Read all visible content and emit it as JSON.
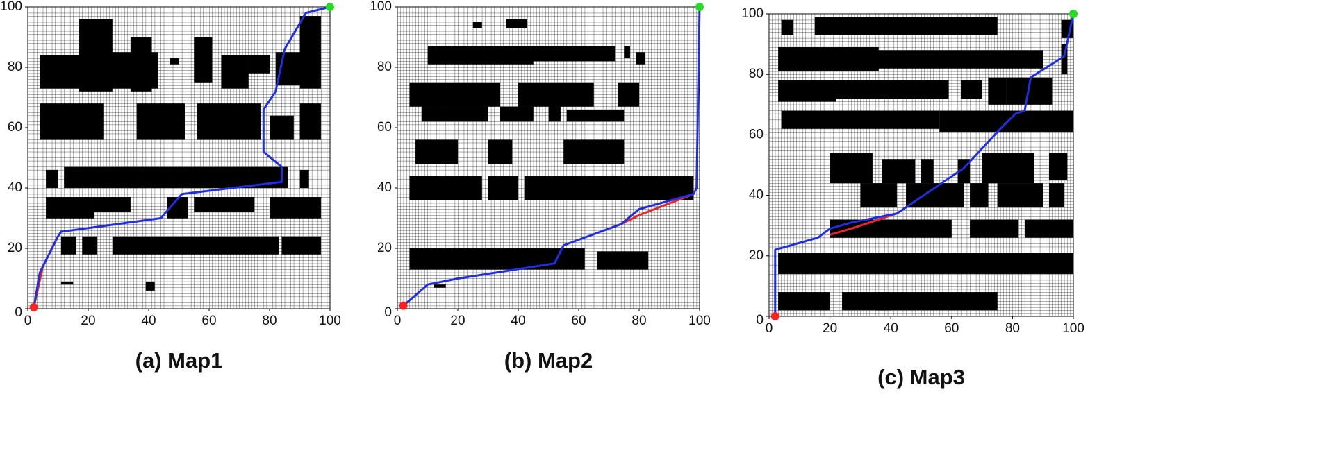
{
  "chart_data": [
    {
      "type": "line",
      "title": "(a) Map1",
      "xlim": [
        0,
        100
      ],
      "ylim": [
        0,
        100
      ],
      "xticks": [
        0,
        20,
        40,
        60,
        80,
        100
      ],
      "yticks": [
        0,
        20,
        40,
        60,
        80,
        100
      ],
      "grid": true,
      "obstacles": [
        [
          4,
          73,
          20,
          84
        ],
        [
          17,
          72,
          28,
          96
        ],
        [
          23,
          73,
          43,
          85
        ],
        [
          34,
          72,
          41,
          90
        ],
        [
          47,
          81,
          50,
          83
        ],
        [
          55,
          75,
          61,
          90
        ],
        [
          64,
          73,
          73,
          84
        ],
        [
          73,
          78,
          80,
          84
        ],
        [
          82,
          74,
          90,
          85
        ],
        [
          90,
          73,
          97,
          97
        ],
        [
          4,
          56,
          25,
          68
        ],
        [
          36,
          56,
          52,
          68
        ],
        [
          56,
          56,
          77,
          68
        ],
        [
          80,
          56,
          88,
          64
        ],
        [
          90,
          56,
          97,
          68
        ],
        [
          6,
          40,
          10,
          46
        ],
        [
          12,
          40,
          86,
          47
        ],
        [
          90,
          40,
          93,
          46
        ],
        [
          6,
          30,
          22,
          37
        ],
        [
          22,
          32,
          34,
          37
        ],
        [
          46,
          30,
          53,
          37
        ],
        [
          55,
          32,
          75,
          37
        ],
        [
          80,
          30,
          97,
          37
        ],
        [
          11,
          18,
          16,
          24
        ],
        [
          18,
          18,
          23,
          24
        ],
        [
          28,
          18,
          83,
          24
        ],
        [
          84,
          18,
          97,
          24
        ],
        [
          11,
          8,
          15,
          9
        ],
        [
          39,
          6,
          42,
          9
        ]
      ],
      "series": [
        {
          "color": "#e8262b",
          "x": [
            2,
            5,
            10
          ],
          "values": [
            0.5,
            14,
            24
          ]
        },
        {
          "color": "#1f2fe0",
          "x": [
            2,
            4,
            10,
            11,
            44,
            51,
            84,
            84,
            78,
            78,
            82,
            85,
            92,
            100
          ],
          "values": [
            0.5,
            12,
            24,
            25.5,
            30,
            38,
            42,
            47,
            52,
            66,
            72,
            86,
            98,
            100
          ]
        }
      ],
      "start": {
        "x": 2,
        "y": 0.5,
        "color": "#ff2020"
      },
      "goal": {
        "x": 100,
        "y": 100,
        "color": "#22dd22"
      }
    },
    {
      "type": "line",
      "title": "(b) Map2",
      "xlim": [
        0,
        100
      ],
      "ylim": [
        0,
        100
      ],
      "xticks": [
        0,
        20,
        40,
        60,
        80,
        100
      ],
      "yticks": [
        0,
        20,
        40,
        60,
        80,
        100
      ],
      "grid": true,
      "obstacles": [
        [
          25,
          93,
          28,
          95
        ],
        [
          36,
          93,
          43,
          96
        ],
        [
          10,
          81,
          45,
          87
        ],
        [
          44,
          82,
          72,
          87
        ],
        [
          75,
          83,
          77,
          87
        ],
        [
          79,
          81,
          82,
          85
        ],
        [
          4,
          67,
          34,
          75
        ],
        [
          40,
          67,
          65,
          75
        ],
        [
          73,
          67,
          80,
          75
        ],
        [
          8,
          62,
          30,
          67
        ],
        [
          34,
          62,
          45,
          67
        ],
        [
          50,
          62,
          54,
          67
        ],
        [
          56,
          62,
          75,
          66
        ],
        [
          6,
          48,
          20,
          56
        ],
        [
          30,
          48,
          38,
          56
        ],
        [
          55,
          48,
          75,
          56
        ],
        [
          4,
          36,
          28,
          44
        ],
        [
          30,
          36,
          40,
          44
        ],
        [
          42,
          36,
          98,
          44
        ],
        [
          4,
          13,
          20,
          20
        ],
        [
          18,
          13,
          50,
          20
        ],
        [
          48,
          13,
          62,
          20
        ],
        [
          66,
          13,
          83,
          19
        ],
        [
          12,
          7,
          16,
          8
        ]
      ],
      "series": [
        {
          "color": "#e8262b",
          "x": [
            74,
            80,
            98
          ],
          "values": [
            28,
            31,
            38
          ]
        },
        {
          "color": "#1f2fe0",
          "x": [
            2,
            10,
            20,
            52,
            55,
            74,
            80,
            98,
            99,
            100
          ],
          "values": [
            1,
            8,
            10,
            15,
            21,
            28,
            33,
            38,
            40,
            100
          ]
        }
      ],
      "start": {
        "x": 2,
        "y": 1,
        "color": "#ff2020"
      },
      "goal": {
        "x": 100,
        "y": 100,
        "color": "#22dd22"
      }
    },
    {
      "type": "line",
      "title": "(c) Map3",
      "xlim": [
        0,
        100
      ],
      "ylim": [
        0,
        100
      ],
      "xticks": [
        0,
        20,
        40,
        60,
        80,
        100
      ],
      "yticks": [
        0,
        20,
        40,
        60,
        80,
        100
      ],
      "grid": true,
      "obstacles": [
        [
          4,
          93,
          8,
          98
        ],
        [
          15,
          93,
          75,
          99
        ],
        [
          96,
          92,
          100,
          98
        ],
        [
          3,
          81,
          36,
          89
        ],
        [
          35,
          82,
          90,
          88
        ],
        [
          96,
          80,
          98,
          90
        ],
        [
          3,
          71,
          22,
          78
        ],
        [
          22,
          72,
          59,
          78
        ],
        [
          63,
          72,
          70,
          78
        ],
        [
          72,
          70,
          78,
          79
        ],
        [
          78,
          70,
          93,
          79
        ],
        [
          4,
          62,
          25,
          68
        ],
        [
          25,
          62,
          56,
          68
        ],
        [
          56,
          61,
          100,
          68
        ],
        [
          20,
          44,
          34,
          54
        ],
        [
          37,
          44,
          48,
          52
        ],
        [
          50,
          44,
          54,
          52
        ],
        [
          62,
          44,
          66,
          52
        ],
        [
          70,
          44,
          87,
          54
        ],
        [
          92,
          45,
          98,
          54
        ],
        [
          30,
          36,
          42,
          44
        ],
        [
          45,
          36,
          64,
          44
        ],
        [
          66,
          36,
          72,
          44
        ],
        [
          75,
          36,
          90,
          44
        ],
        [
          92,
          36,
          97,
          44
        ],
        [
          20,
          26,
          60,
          32
        ],
        [
          66,
          26,
          82,
          32
        ],
        [
          84,
          26,
          100,
          32
        ],
        [
          3,
          14,
          100,
          21
        ],
        [
          3,
          2,
          20,
          8
        ],
        [
          24,
          2,
          40,
          8
        ],
        [
          35,
          2,
          75,
          8
        ]
      ],
      "series": [
        {
          "color": "#e8262b",
          "x": [
            20,
            27,
            42
          ],
          "values": [
            27,
            29,
            34
          ]
        },
        {
          "color": "#1f2fe0",
          "x": [
            2,
            2,
            16,
            20,
            27,
            42,
            64,
            76,
            81,
            84,
            86,
            97,
            100
          ],
          "values": [
            0,
            22,
            26,
            29,
            31,
            34,
            49,
            62,
            67,
            68,
            79,
            86,
            100
          ]
        }
      ],
      "start": {
        "x": 2,
        "y": 0,
        "color": "#ff2020"
      },
      "goal": {
        "x": 100,
        "y": 100,
        "color": "#22dd22"
      }
    }
  ]
}
